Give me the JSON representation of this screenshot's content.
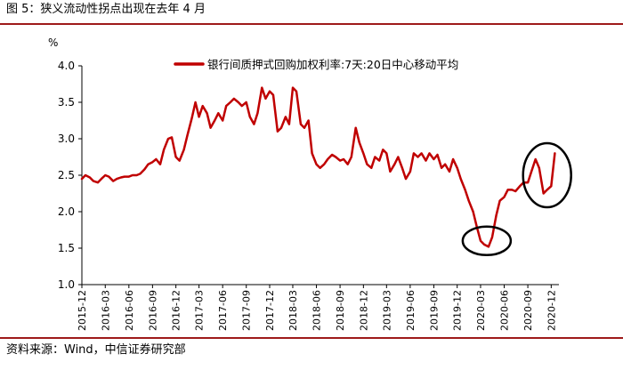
{
  "header": {
    "title": "图 5：狭义流动性拐点出现在去年 4 月"
  },
  "footer": {
    "source": "资料来源：Wind，中信证券研究部"
  },
  "colors": {
    "series": "#c00000",
    "rule": "#9e1a1a",
    "circle": "#000000",
    "axis": "#000000"
  },
  "chart_data": {
    "type": "line",
    "y_unit": "%",
    "ylim": [
      1.0,
      4.0
    ],
    "yticks": [
      "1.0",
      "1.5",
      "2.0",
      "2.5",
      "3.0",
      "3.5",
      "4.0"
    ],
    "xticks": [
      "2015-12",
      "2016-03",
      "2016-06",
      "2016-09",
      "2016-12",
      "2017-03",
      "2017-06",
      "2017-09",
      "2017-12",
      "2018-03",
      "2018-06",
      "2018-09",
      "2018-12",
      "2019-03",
      "2019-06",
      "2019-09",
      "2019-12",
      "2020-03",
      "2020-06",
      "2020-09",
      "2020-12"
    ],
    "xrange": [
      "2015-12-01",
      "2020-12-31"
    ],
    "grid": false,
    "legend_position": "top",
    "series": [
      {
        "name": "银行间质押式回购加权利率:7天:20日中心移动平均",
        "points": [
          [
            "2015-12-01",
            2.45
          ],
          [
            "2015-12-15",
            2.5
          ],
          [
            "2016-01-01",
            2.47
          ],
          [
            "2016-01-15",
            2.42
          ],
          [
            "2016-02-01",
            2.4
          ],
          [
            "2016-02-15",
            2.45
          ],
          [
            "2016-03-01",
            2.5
          ],
          [
            "2016-03-15",
            2.48
          ],
          [
            "2016-04-01",
            2.42
          ],
          [
            "2016-04-15",
            2.45
          ],
          [
            "2016-05-01",
            2.47
          ],
          [
            "2016-05-15",
            2.48
          ],
          [
            "2016-06-01",
            2.48
          ],
          [
            "2016-06-15",
            2.5
          ],
          [
            "2016-07-01",
            2.5
          ],
          [
            "2016-07-15",
            2.52
          ],
          [
            "2016-08-01",
            2.58
          ],
          [
            "2016-08-15",
            2.65
          ],
          [
            "2016-09-01",
            2.68
          ],
          [
            "2016-09-15",
            2.72
          ],
          [
            "2016-10-01",
            2.65
          ],
          [
            "2016-10-15",
            2.85
          ],
          [
            "2016-11-01",
            3.0
          ],
          [
            "2016-11-15",
            3.02
          ],
          [
            "2016-12-01",
            2.75
          ],
          [
            "2016-12-15",
            2.7
          ],
          [
            "2017-01-01",
            2.85
          ],
          [
            "2017-01-15",
            3.05
          ],
          [
            "2017-02-01",
            3.28
          ],
          [
            "2017-02-15",
            3.5
          ],
          [
            "2017-03-01",
            3.3
          ],
          [
            "2017-03-15",
            3.45
          ],
          [
            "2017-04-01",
            3.35
          ],
          [
            "2017-04-15",
            3.15
          ],
          [
            "2017-05-01",
            3.25
          ],
          [
            "2017-05-15",
            3.35
          ],
          [
            "2017-06-01",
            3.25
          ],
          [
            "2017-06-15",
            3.45
          ],
          [
            "2017-07-01",
            3.5
          ],
          [
            "2017-07-15",
            3.55
          ],
          [
            "2017-08-01",
            3.5
          ],
          [
            "2017-08-15",
            3.45
          ],
          [
            "2017-09-01",
            3.5
          ],
          [
            "2017-09-15",
            3.3
          ],
          [
            "2017-10-01",
            3.2
          ],
          [
            "2017-10-15",
            3.35
          ],
          [
            "2017-11-01",
            3.7
          ],
          [
            "2017-11-15",
            3.55
          ],
          [
            "2017-12-01",
            3.65
          ],
          [
            "2017-12-15",
            3.6
          ],
          [
            "2018-01-01",
            3.1
          ],
          [
            "2018-01-15",
            3.15
          ],
          [
            "2018-02-01",
            3.3
          ],
          [
            "2018-02-15",
            3.2
          ],
          [
            "2018-03-01",
            3.7
          ],
          [
            "2018-03-15",
            3.65
          ],
          [
            "2018-04-01",
            3.2
          ],
          [
            "2018-04-15",
            3.15
          ],
          [
            "2018-05-01",
            3.25
          ],
          [
            "2018-05-15",
            2.8
          ],
          [
            "2018-06-01",
            2.65
          ],
          [
            "2018-06-15",
            2.6
          ],
          [
            "2018-07-01",
            2.65
          ],
          [
            "2018-07-15",
            2.72
          ],
          [
            "2018-08-01",
            2.78
          ],
          [
            "2018-08-15",
            2.75
          ],
          [
            "2018-09-01",
            2.7
          ],
          [
            "2018-09-15",
            2.72
          ],
          [
            "2018-10-01",
            2.65
          ],
          [
            "2018-10-15",
            2.75
          ],
          [
            "2018-11-01",
            3.15
          ],
          [
            "2018-11-15",
            2.95
          ],
          [
            "2018-12-01",
            2.8
          ],
          [
            "2018-12-15",
            2.65
          ],
          [
            "2019-01-01",
            2.6
          ],
          [
            "2019-01-15",
            2.75
          ],
          [
            "2019-02-01",
            2.7
          ],
          [
            "2019-02-15",
            2.85
          ],
          [
            "2019-03-01",
            2.8
          ],
          [
            "2019-03-15",
            2.55
          ],
          [
            "2019-04-01",
            2.65
          ],
          [
            "2019-04-15",
            2.75
          ],
          [
            "2019-05-01",
            2.6
          ],
          [
            "2019-05-15",
            2.45
          ],
          [
            "2019-06-01",
            2.55
          ],
          [
            "2019-06-15",
            2.8
          ],
          [
            "2019-07-01",
            2.75
          ],
          [
            "2019-07-15",
            2.8
          ],
          [
            "2019-08-01",
            2.7
          ],
          [
            "2019-08-15",
            2.8
          ],
          [
            "2019-09-01",
            2.72
          ],
          [
            "2019-09-15",
            2.78
          ],
          [
            "2019-10-01",
            2.6
          ],
          [
            "2019-10-15",
            2.65
          ],
          [
            "2019-11-01",
            2.55
          ],
          [
            "2019-11-15",
            2.72
          ],
          [
            "2019-12-01",
            2.6
          ],
          [
            "2019-12-15",
            2.45
          ],
          [
            "2020-01-01",
            2.3
          ],
          [
            "2020-01-15",
            2.15
          ],
          [
            "2020-02-01",
            2.0
          ],
          [
            "2020-02-15",
            1.8
          ],
          [
            "2020-03-01",
            1.6
          ],
          [
            "2020-03-15",
            1.55
          ],
          [
            "2020-04-01",
            1.52
          ],
          [
            "2020-04-15",
            1.65
          ],
          [
            "2020-05-01",
            1.95
          ],
          [
            "2020-05-15",
            2.15
          ],
          [
            "2020-06-01",
            2.2
          ],
          [
            "2020-06-15",
            2.3
          ],
          [
            "2020-07-01",
            2.3
          ],
          [
            "2020-07-15",
            2.28
          ],
          [
            "2020-08-01",
            2.35
          ],
          [
            "2020-08-15",
            2.4
          ],
          [
            "2020-09-01",
            2.4
          ],
          [
            "2020-09-15",
            2.55
          ],
          [
            "2020-10-01",
            2.72
          ],
          [
            "2020-10-15",
            2.6
          ],
          [
            "2020-11-01",
            2.25
          ],
          [
            "2020-11-15",
            2.3
          ],
          [
            "2020-12-01",
            2.35
          ],
          [
            "2020-12-15",
            2.8
          ]
        ]
      }
    ],
    "annotations": [
      {
        "type": "ellipse",
        "around": "2020-04 trough",
        "center": [
          "2020-03-25",
          1.6
        ]
      },
      {
        "type": "ellipse",
        "around": "2020-12 rebound",
        "center": [
          "2020-11-15",
          2.5
        ]
      }
    ]
  }
}
